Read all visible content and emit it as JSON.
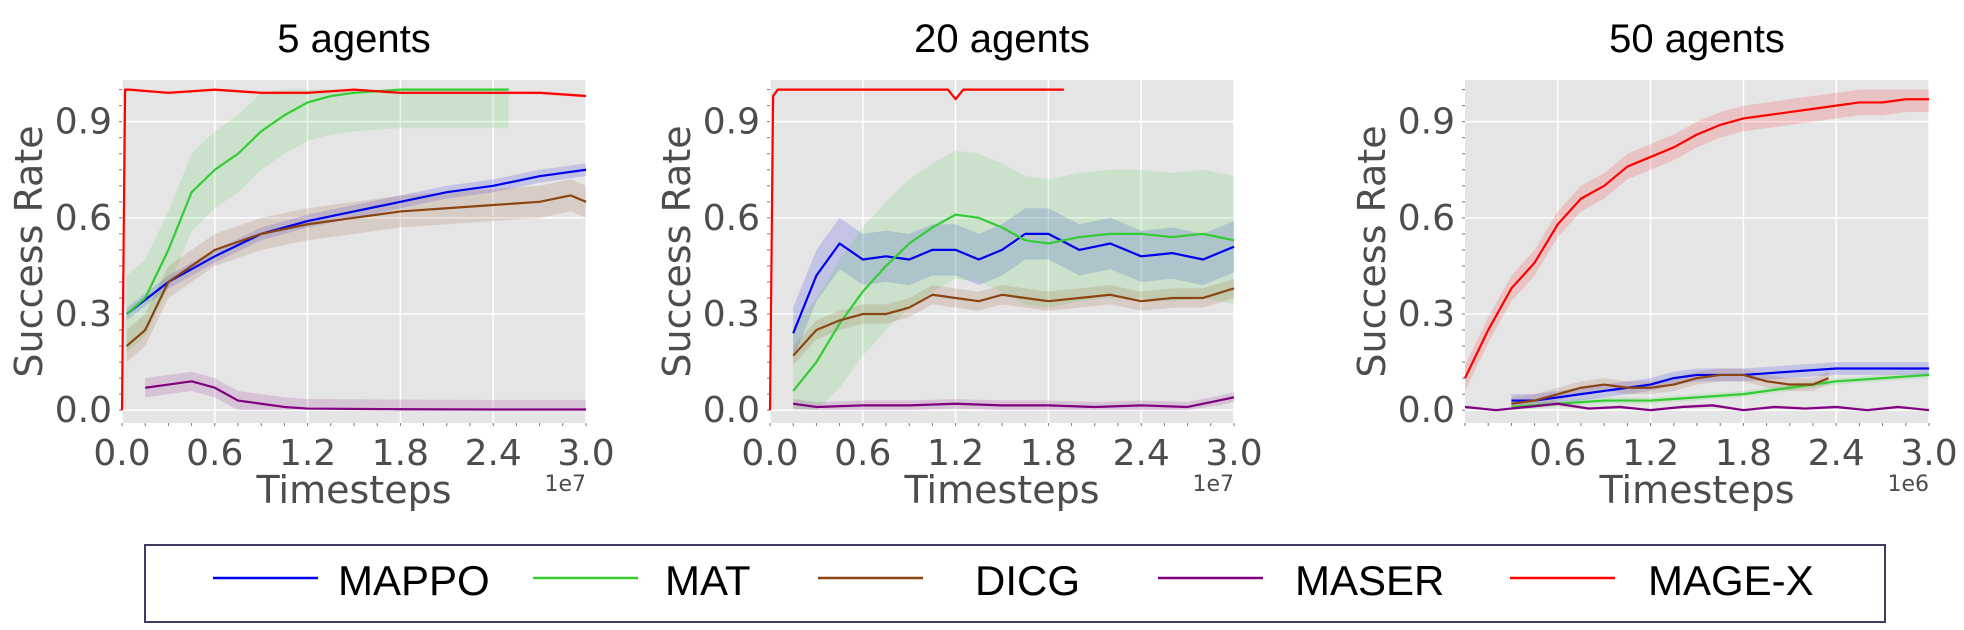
{
  "colors": {
    "MAPPO": "#0000ee",
    "MAT": "#33cc33",
    "DICG": "#8b4513",
    "MASER": "#800080",
    "MAGE-X": "#ff0000",
    "panel_bg": "#e5e5e5",
    "grid": "#ffffff"
  },
  "legend": {
    "position": "bottom-center",
    "entries": [
      "MAPPO",
      "MAT",
      "DICG",
      "MASER",
      "MAGE-X"
    ]
  },
  "chart_data": [
    {
      "type": "line",
      "title": "5 agents",
      "xlabel": "Timesteps",
      "ylabel": "Success Rate",
      "x_offset_label": "1e7",
      "xlim": [
        0,
        3.0
      ],
      "ylim": [
        -0.04,
        1.03
      ],
      "xticks": [
        "0.0",
        "0.6",
        "1.2",
        "1.8",
        "2.4",
        "3.0"
      ],
      "yticks": [
        "0.0",
        "0.3",
        "0.6",
        "0.9"
      ],
      "grid": true,
      "series": [
        {
          "name": "MAPPO",
          "x": [
            0.03,
            0.3,
            0.6,
            0.9,
            1.2,
            1.5,
            1.8,
            2.1,
            2.4,
            2.7,
            3.0
          ],
          "y": [
            0.3,
            0.4,
            0.48,
            0.55,
            0.59,
            0.62,
            0.65,
            0.68,
            0.7,
            0.73,
            0.75
          ],
          "band": 0.02
        },
        {
          "name": "MAT",
          "x": [
            0.03,
            0.15,
            0.3,
            0.45,
            0.6,
            0.75,
            0.9,
            1.05,
            1.2,
            1.35,
            1.5,
            1.8,
            2.4,
            2.5
          ],
          "y": [
            0.3,
            0.35,
            0.5,
            0.68,
            0.75,
            0.8,
            0.87,
            0.92,
            0.96,
            0.98,
            0.99,
            1.0,
            1.0,
            1.0
          ],
          "band": 0.12
        },
        {
          "name": "DICG",
          "x": [
            0.03,
            0.15,
            0.3,
            0.6,
            0.9,
            1.2,
            1.5,
            1.8,
            2.1,
            2.4,
            2.7,
            2.9,
            3.0
          ],
          "y": [
            0.2,
            0.25,
            0.4,
            0.5,
            0.55,
            0.58,
            0.6,
            0.62,
            0.63,
            0.64,
            0.65,
            0.67,
            0.65
          ],
          "band": 0.05
        },
        {
          "name": "MASER",
          "x": [
            0.15,
            0.3,
            0.45,
            0.6,
            0.75,
            0.9,
            1.05,
            1.2,
            1.8,
            2.4,
            3.0
          ],
          "y": [
            0.07,
            0.08,
            0.09,
            0.07,
            0.03,
            0.02,
            0.01,
            0.005,
            0.003,
            0.002,
            0.002
          ],
          "band": 0.03
        },
        {
          "name": "MAGE-X",
          "x": [
            0.0,
            0.02,
            0.05,
            0.3,
            0.6,
            0.9,
            1.2,
            1.5,
            1.8,
            2.1,
            2.4,
            2.7,
            3.0
          ],
          "y": [
            0.0,
            1.0,
            1.0,
            0.99,
            1.0,
            0.99,
            0.99,
            1.0,
            0.99,
            0.99,
            0.99,
            0.99,
            0.98
          ],
          "band": 0.005
        }
      ]
    },
    {
      "type": "line",
      "title": "20 agents",
      "xlabel": "Timesteps",
      "ylabel": "Success Rate",
      "x_offset_label": "1e7",
      "xlim": [
        0,
        3.0
      ],
      "ylim": [
        -0.04,
        1.03
      ],
      "xticks": [
        "0.0",
        "0.6",
        "1.2",
        "1.8",
        "2.4",
        "3.0"
      ],
      "yticks": [
        "0.0",
        "0.3",
        "0.6",
        "0.9"
      ],
      "grid": true,
      "series": [
        {
          "name": "MAPPO",
          "x": [
            0.15,
            0.3,
            0.45,
            0.6,
            0.75,
            0.9,
            1.05,
            1.2,
            1.35,
            1.5,
            1.65,
            1.8,
            2.0,
            2.2,
            2.4,
            2.6,
            2.8,
            3.0
          ],
          "y": [
            0.24,
            0.42,
            0.52,
            0.47,
            0.48,
            0.47,
            0.5,
            0.5,
            0.47,
            0.5,
            0.55,
            0.55,
            0.5,
            0.52,
            0.48,
            0.49,
            0.47,
            0.51
          ],
          "band": 0.08
        },
        {
          "name": "MAT",
          "x": [
            0.15,
            0.3,
            0.45,
            0.6,
            0.75,
            0.9,
            1.05,
            1.2,
            1.35,
            1.5,
            1.65,
            1.8,
            2.0,
            2.2,
            2.4,
            2.6,
            2.8,
            3.0
          ],
          "y": [
            0.06,
            0.15,
            0.27,
            0.37,
            0.45,
            0.52,
            0.57,
            0.61,
            0.6,
            0.57,
            0.53,
            0.52,
            0.54,
            0.55,
            0.55,
            0.54,
            0.55,
            0.53
          ],
          "band": 0.2
        },
        {
          "name": "DICG",
          "x": [
            0.15,
            0.3,
            0.45,
            0.6,
            0.75,
            0.9,
            1.05,
            1.2,
            1.35,
            1.5,
            1.65,
            1.8,
            2.0,
            2.2,
            2.4,
            2.6,
            2.8,
            3.0
          ],
          "y": [
            0.17,
            0.25,
            0.28,
            0.3,
            0.3,
            0.32,
            0.36,
            0.35,
            0.34,
            0.36,
            0.35,
            0.34,
            0.35,
            0.36,
            0.34,
            0.35,
            0.35,
            0.38
          ],
          "band": 0.03
        },
        {
          "name": "MASER",
          "x": [
            0.15,
            0.3,
            0.6,
            0.9,
            1.2,
            1.5,
            1.8,
            2.1,
            2.4,
            2.7,
            2.9,
            3.0
          ],
          "y": [
            0.02,
            0.01,
            0.015,
            0.015,
            0.02,
            0.015,
            0.015,
            0.01,
            0.015,
            0.01,
            0.03,
            0.04
          ],
          "band": 0.015
        },
        {
          "name": "MAGE-X",
          "x": [
            0.0,
            0.02,
            0.05,
            0.3,
            0.6,
            0.9,
            1.15,
            1.2,
            1.25,
            1.5,
            1.9
          ],
          "y": [
            0.0,
            0.98,
            1.0,
            1.0,
            1.0,
            1.0,
            1.0,
            0.97,
            1.0,
            1.0,
            1.0
          ],
          "band": 0.003
        }
      ]
    },
    {
      "type": "line",
      "title": "50 agents",
      "xlabel": "Timesteps",
      "ylabel": "Success Rate",
      "x_offset_label": "1e6",
      "xlim": [
        0,
        3.0
      ],
      "ylim": [
        -0.04,
        1.03
      ],
      "xticks": [
        "0.6",
        "1.2",
        "1.8",
        "2.4",
        "3.0"
      ],
      "yticks": [
        "0.0",
        "0.3",
        "0.6",
        "0.9"
      ],
      "grid": true,
      "series": [
        {
          "name": "MAPPO",
          "x": [
            0.3,
            0.45,
            0.6,
            0.75,
            0.9,
            1.05,
            1.2,
            1.35,
            1.5,
            1.8,
            2.1,
            2.4,
            2.7,
            3.0
          ],
          "y": [
            0.03,
            0.03,
            0.04,
            0.05,
            0.06,
            0.07,
            0.08,
            0.1,
            0.11,
            0.11,
            0.12,
            0.13,
            0.13,
            0.13
          ],
          "band": 0.02
        },
        {
          "name": "MAT",
          "x": [
            0.3,
            0.6,
            0.9,
            1.2,
            1.5,
            1.8,
            2.1,
            2.4,
            2.7,
            3.0
          ],
          "y": [
            0.01,
            0.02,
            0.03,
            0.03,
            0.04,
            0.05,
            0.07,
            0.09,
            0.1,
            0.11
          ],
          "band": 0.01
        },
        {
          "name": "DICG",
          "x": [
            0.3,
            0.45,
            0.6,
            0.75,
            0.9,
            1.05,
            1.2,
            1.35,
            1.5,
            1.65,
            1.8,
            1.95,
            2.1,
            2.25,
            2.35
          ],
          "y": [
            0.02,
            0.03,
            0.05,
            0.07,
            0.08,
            0.07,
            0.07,
            0.08,
            0.1,
            0.11,
            0.11,
            0.09,
            0.08,
            0.08,
            0.1
          ],
          "band": 0.02
        },
        {
          "name": "MASER",
          "x": [
            0.0,
            0.2,
            0.4,
            0.6,
            0.8,
            1.0,
            1.2,
            1.4,
            1.6,
            1.8,
            2.0,
            2.2,
            2.4,
            2.6,
            2.8,
            3.0
          ],
          "y": [
            0.01,
            0.0,
            0.01,
            0.02,
            0.005,
            0.01,
            0.0,
            0.01,
            0.015,
            0.0,
            0.01,
            0.005,
            0.01,
            0.0,
            0.01,
            0.0
          ],
          "band": 0.005
        },
        {
          "name": "MAGE-X",
          "x": [
            0.0,
            0.15,
            0.3,
            0.45,
            0.6,
            0.75,
            0.9,
            1.05,
            1.2,
            1.35,
            1.5,
            1.65,
            1.8,
            1.95,
            2.1,
            2.25,
            2.4,
            2.55,
            2.7,
            2.85,
            3.0
          ],
          "y": [
            0.1,
            0.25,
            0.38,
            0.46,
            0.58,
            0.66,
            0.7,
            0.76,
            0.79,
            0.82,
            0.86,
            0.89,
            0.91,
            0.92,
            0.93,
            0.94,
            0.95,
            0.96,
            0.96,
            0.97,
            0.97
          ],
          "band": 0.04
        }
      ]
    }
  ]
}
